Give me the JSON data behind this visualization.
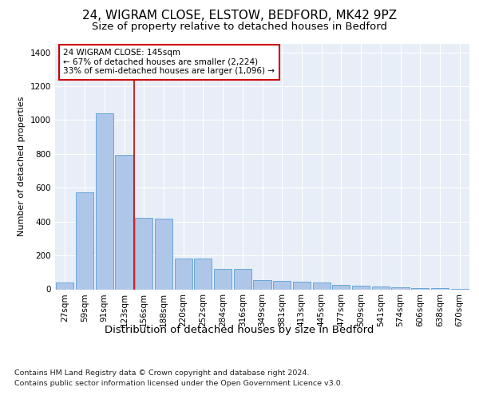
{
  "title1": "24, WIGRAM CLOSE, ELSTOW, BEDFORD, MK42 9PZ",
  "title2": "Size of property relative to detached houses in Bedford",
  "xlabel": "Distribution of detached houses by size in Bedford",
  "ylabel": "Number of detached properties",
  "footnote1": "Contains HM Land Registry data © Crown copyright and database right 2024.",
  "footnote2": "Contains public sector information licensed under the Open Government Licence v3.0.",
  "bar_labels": [
    "27sqm",
    "59sqm",
    "91sqm",
    "123sqm",
    "156sqm",
    "188sqm",
    "220sqm",
    "252sqm",
    "284sqm",
    "316sqm",
    "349sqm",
    "381sqm",
    "413sqm",
    "445sqm",
    "477sqm",
    "509sqm",
    "541sqm",
    "574sqm",
    "606sqm",
    "638sqm",
    "670sqm"
  ],
  "bar_values": [
    40,
    575,
    1040,
    795,
    420,
    415,
    180,
    180,
    120,
    120,
    55,
    50,
    45,
    40,
    25,
    22,
    15,
    12,
    8,
    5,
    2
  ],
  "bar_color": "#aec6e8",
  "bar_edge_color": "#5a9fd4",
  "annotation_box_text": "24 WIGRAM CLOSE: 145sqm\n← 67% of detached houses are smaller (2,224)\n33% of semi-detached houses are larger (1,096) →",
  "vline_x_index": 3.5,
  "vline_color": "#cc0000",
  "ylim": [
    0,
    1450
  ],
  "yticks": [
    0,
    200,
    400,
    600,
    800,
    1000,
    1200,
    1400
  ],
  "plot_bg_color": "#e8eef7",
  "title1_fontsize": 11,
  "title2_fontsize": 9.5,
  "xlabel_fontsize": 9.5,
  "ylabel_fontsize": 8,
  "tick_fontsize": 7.5,
  "footnote_fontsize": 6.8,
  "annot_fontsize": 7.5
}
